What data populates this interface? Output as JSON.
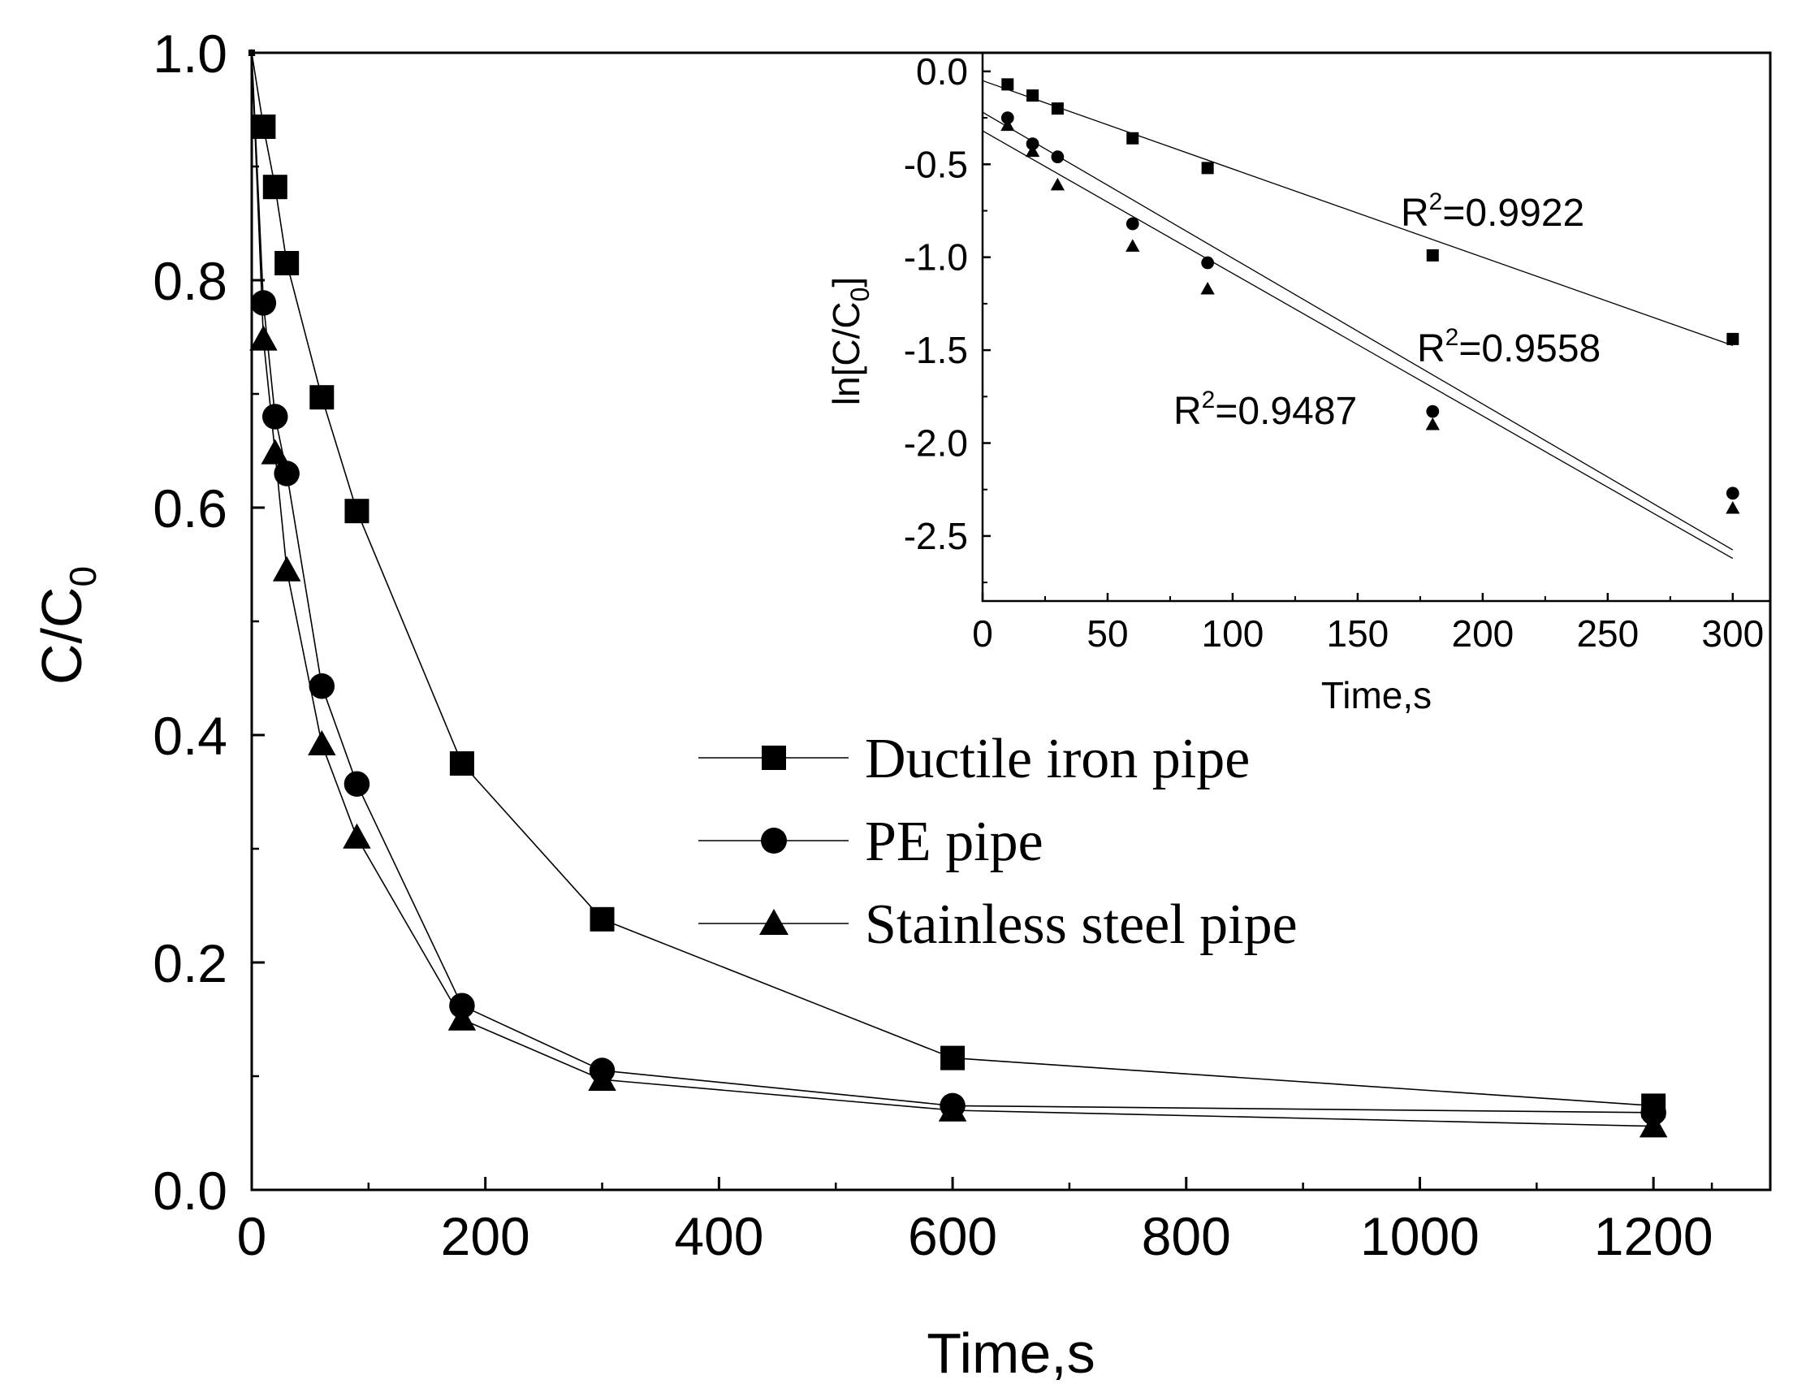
{
  "chart_data": [
    {
      "type": "line",
      "title": "",
      "xlabel": "Time,s",
      "ylabel": {
        "main": "C/C",
        "sub": "0"
      },
      "xlim": [
        0,
        1300
      ],
      "ylim": [
        0,
        1.0
      ],
      "xticks": [
        0,
        200,
        400,
        600,
        800,
        1000,
        1200
      ],
      "xtick_labels": [
        "0",
        "200",
        "400",
        "600",
        "800",
        "1000",
        "1200"
      ],
      "yticks": [
        0.0,
        0.2,
        0.4,
        0.6,
        0.8,
        1.0
      ],
      "ytick_labels": [
        "0.0",
        "0.2",
        "0.4",
        "0.6",
        "0.8",
        "1.0"
      ],
      "x": [
        0,
        10,
        20,
        30,
        60,
        90,
        180,
        300,
        600,
        1200
      ],
      "legend_position": "center-right",
      "series": [
        {
          "name": "Ductile iron pipe",
          "marker": "square",
          "values": [
            1.0,
            0.935,
            0.882,
            0.815,
            0.697,
            0.597,
            0.375,
            0.238,
            0.116,
            0.074
          ]
        },
        {
          "name": "PE pipe",
          "marker": "circle",
          "values": [
            1.0,
            0.78,
            0.68,
            0.63,
            0.443,
            0.357,
            0.162,
            0.105,
            0.074,
            0.068
          ]
        },
        {
          "name": "Stainless steel pipe",
          "marker": "triangle",
          "values": [
            1.0,
            0.748,
            0.648,
            0.545,
            0.392,
            0.31,
            0.15,
            0.097,
            0.07,
            0.056
          ]
        }
      ]
    },
    {
      "type": "scatter",
      "title": "",
      "xlabel": "Time,s",
      "ylabel": {
        "main": "ln[C/C",
        "sub": "0",
        "close": "]"
      },
      "xlim": [
        0,
        315
      ],
      "ylim": [
        -2.85,
        0.1
      ],
      "xticks": [
        0,
        50,
        100,
        150,
        200,
        250,
        300
      ],
      "xtick_labels": [
        "0",
        "50",
        "100",
        "150",
        "200",
        "250",
        "300"
      ],
      "yticks": [
        0.0,
        -0.5,
        -1.0,
        -1.5,
        -2.0,
        -2.5
      ],
      "ytick_labels": [
        "0.0",
        "-0.5",
        "-1.0",
        "-1.5",
        "-2.0",
        "-2.5"
      ],
      "x": [
        10,
        20,
        30,
        60,
        90,
        180,
        300
      ],
      "series": [
        {
          "name": "Ductile iron pipe",
          "marker": "square",
          "values": [
            -0.07,
            -0.13,
            -0.2,
            -0.36,
            -0.52,
            -0.99,
            -1.44
          ],
          "fit": {
            "intercept": -0.05,
            "slope": -0.00475,
            "x_end": 300
          }
        },
        {
          "name": "PE pipe",
          "marker": "circle",
          "values": [
            -0.25,
            -0.39,
            -0.46,
            -0.82,
            -1.03,
            -1.83,
            -2.27
          ],
          "fit": {
            "intercept": -0.22,
            "slope": -0.00785,
            "x_end": 300
          }
        },
        {
          "name": "Stainless steel pipe",
          "marker": "triangle",
          "values": [
            -0.29,
            -0.43,
            -0.61,
            -0.94,
            -1.17,
            -1.9,
            -2.35
          ],
          "fit": {
            "intercept": -0.32,
            "slope": -0.00767,
            "x_end": 300
          }
        }
      ],
      "annotations": [
        {
          "base": "R",
          "sup": "2",
          "value": "=0.9922",
          "series": "Ductile iron pipe"
        },
        {
          "base": "R",
          "sup": "2",
          "value": "=0.9558",
          "series": "PE pipe"
        },
        {
          "base": "R",
          "sup": "2",
          "value": "=0.9487",
          "series": "Stainless steel pipe"
        }
      ]
    }
  ]
}
